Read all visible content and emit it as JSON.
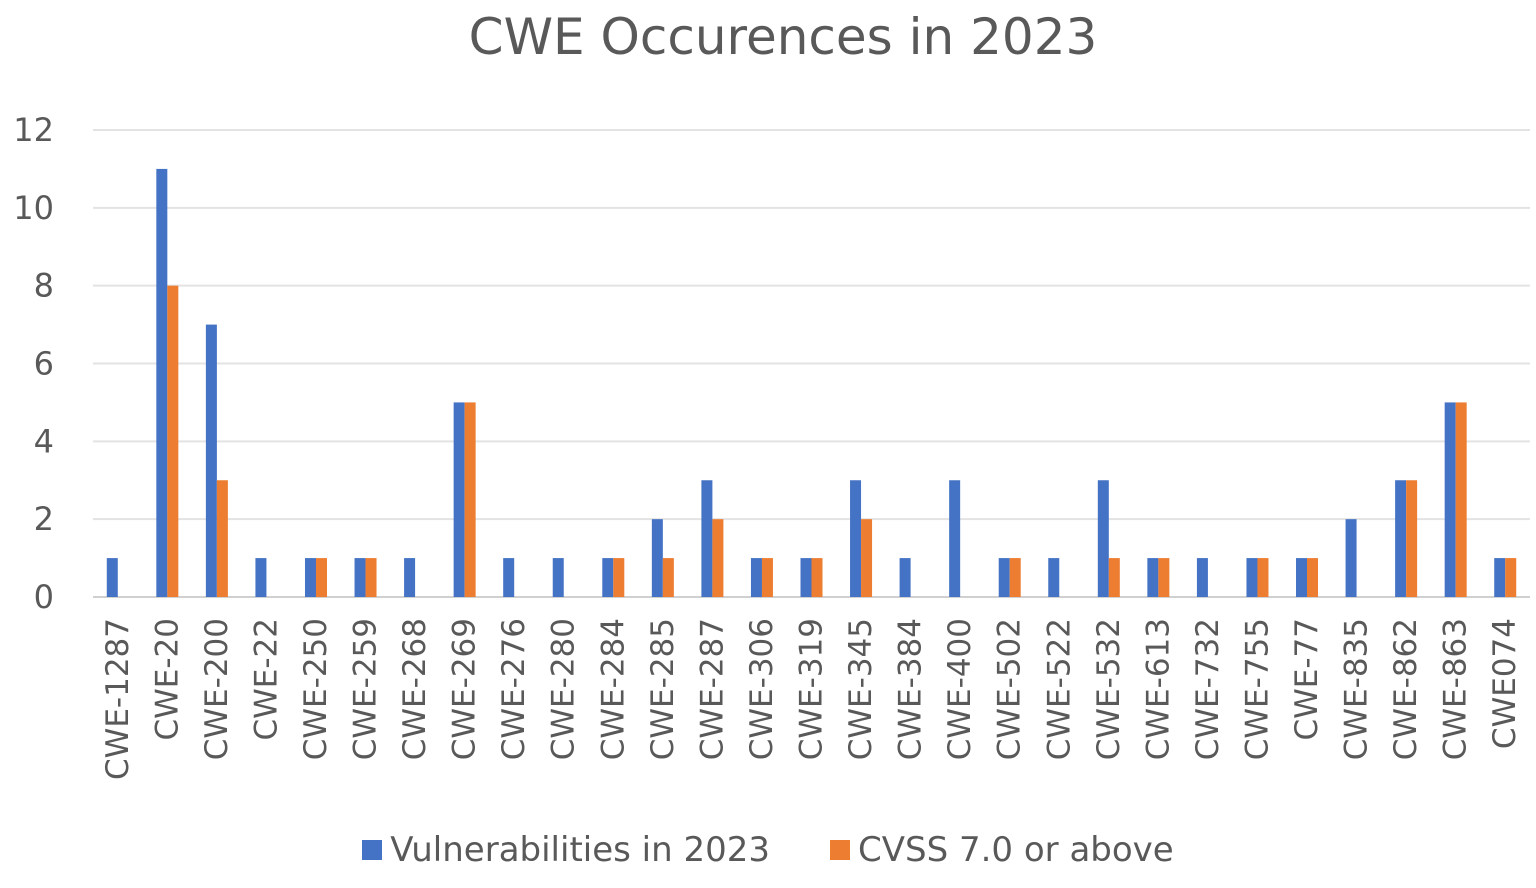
{
  "chart_data": {
    "type": "bar",
    "title": "CWE Occurences in 2023",
    "xlabel": "",
    "ylabel": "",
    "ylim": [
      0,
      12
    ],
    "yticks": [
      0,
      2,
      4,
      6,
      8,
      10,
      12
    ],
    "grid": true,
    "legend_position": "bottom",
    "categories": [
      "CWE-1287",
      "CWE-20",
      "CWE-200",
      "CWE-22",
      "CWE-250",
      "CWE-259",
      "CWE-268",
      "CWE-269",
      "CWE-276",
      "CWE-280",
      "CWE-284",
      "CWE-285",
      "CWE-287",
      "CWE-306",
      "CWE-319",
      "CWE-345",
      "CWE-384",
      "CWE-400",
      "CWE-502",
      "CWE-522",
      "CWE-532",
      "CWE-613",
      "CWE-732",
      "CWE-755",
      "CWE-77",
      "CWE-835",
      "CWE-862",
      "CWE-863",
      "CWE074"
    ],
    "series": [
      {
        "name": "Vulnerabilities in 2023",
        "color": "#4472C4",
        "values": [
          1,
          11,
          7,
          1,
          1,
          1,
          1,
          5,
          1,
          1,
          1,
          2,
          3,
          1,
          1,
          3,
          1,
          3,
          1,
          1,
          3,
          1,
          1,
          1,
          1,
          2,
          3,
          5,
          1
        ]
      },
      {
        "name": "CVSS 7.0 or above",
        "color": "#ED7D31",
        "values": [
          0,
          8,
          3,
          0,
          1,
          1,
          0,
          5,
          0,
          0,
          1,
          1,
          2,
          1,
          1,
          2,
          0,
          0,
          1,
          0,
          1,
          1,
          0,
          1,
          1,
          0,
          3,
          5,
          1
        ]
      }
    ]
  }
}
